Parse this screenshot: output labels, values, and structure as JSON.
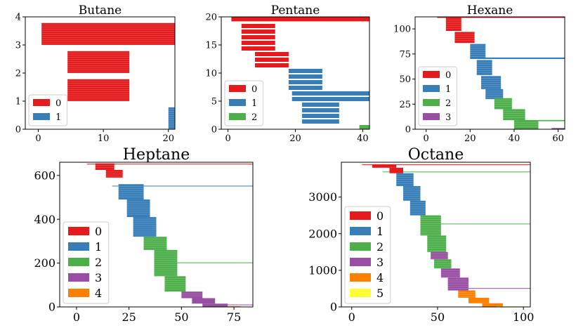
{
  "colors": {
    "0": "#e41a1c",
    "1": "#377eb8",
    "2": "#4daf4a",
    "3": "#984ea3",
    "4": "#ff7f00",
    "5": "#ffff33"
  },
  "chart_data": [
    {
      "type": "bar",
      "title": "Butane",
      "xlim": [
        -2,
        21
      ],
      "ylim": [
        0,
        4
      ],
      "xticks": [
        0,
        10,
        20
      ],
      "yticks": [
        0,
        1,
        2,
        3,
        4
      ],
      "legend": [
        "0",
        "1"
      ],
      "legend_position": "lower-left",
      "bars": [
        {
          "y": 3.0,
          "x0": 0.5,
          "x1": 21,
          "h": 0.78,
          "c": 0
        },
        {
          "y": 2.0,
          "x0": 4.5,
          "x1": 14,
          "h": 0.78,
          "c": 0
        },
        {
          "y": 1.0,
          "x0": 4.5,
          "x1": 14,
          "h": 0.78,
          "c": 0
        },
        {
          "y": 0.0,
          "x0": 20,
          "x1": 21,
          "h": 0.78,
          "c": 1
        }
      ]
    },
    {
      "type": "bar",
      "title": "Pentane",
      "xlim": [
        -2,
        42
      ],
      "ylim": [
        0,
        20
      ],
      "xticks": [
        0,
        20,
        40
      ],
      "yticks": [
        0,
        5,
        10,
        15,
        20
      ],
      "legend": [
        "0",
        "1",
        "2"
      ],
      "legend_position": "lower-left",
      "bars": [
        {
          "y": 19.2,
          "x0": 1,
          "x1": 42,
          "h": 0.75,
          "c": 0
        },
        {
          "y": 18.0,
          "x0": 4,
          "x1": 14,
          "h": 0.75,
          "c": 0
        },
        {
          "y": 17.0,
          "x0": 4,
          "x1": 14,
          "h": 0.75,
          "c": 0
        },
        {
          "y": 16.0,
          "x0": 4,
          "x1": 14,
          "h": 0.75,
          "c": 0
        },
        {
          "y": 15.0,
          "x0": 4,
          "x1": 14,
          "h": 0.75,
          "c": 0
        },
        {
          "y": 14.0,
          "x0": 4,
          "x1": 14,
          "h": 0.75,
          "c": 0
        },
        {
          "y": 13.0,
          "x0": 8,
          "x1": 18,
          "h": 0.75,
          "c": 0
        },
        {
          "y": 12.0,
          "x0": 8,
          "x1": 18,
          "h": 0.75,
          "c": 0
        },
        {
          "y": 11.0,
          "x0": 8,
          "x1": 18,
          "h": 0.75,
          "c": 0
        },
        {
          "y": 10.0,
          "x0": 18,
          "x1": 28,
          "h": 0.75,
          "c": 1
        },
        {
          "y": 9.0,
          "x0": 18,
          "x1": 28,
          "h": 0.75,
          "c": 1
        },
        {
          "y": 8.0,
          "x0": 18,
          "x1": 28,
          "h": 0.75,
          "c": 1
        },
        {
          "y": 7.0,
          "x0": 18,
          "x1": 28,
          "h": 0.75,
          "c": 1
        },
        {
          "y": 6.0,
          "x0": 19,
          "x1": 42,
          "h": 0.75,
          "c": 1
        },
        {
          "y": 5.0,
          "x0": 19,
          "x1": 42,
          "h": 0.75,
          "c": 1
        },
        {
          "y": 4.0,
          "x0": 22,
          "x1": 33,
          "h": 0.75,
          "c": 1
        },
        {
          "y": 3.0,
          "x0": 22,
          "x1": 33,
          "h": 0.75,
          "c": 1
        },
        {
          "y": 2.0,
          "x0": 22,
          "x1": 33,
          "h": 0.75,
          "c": 1
        },
        {
          "y": 1.0,
          "x0": 22,
          "x1": 33,
          "h": 0.75,
          "c": 1
        },
        {
          "y": 0.0,
          "x0": 39,
          "x1": 42,
          "h": 0.75,
          "c": 2
        }
      ]
    },
    {
      "type": "bar",
      "title": "Hexane",
      "xlim": [
        -5,
        63
      ],
      "ylim": [
        0,
        112
      ],
      "xticks": [
        0,
        20,
        40,
        60
      ],
      "yticks": [
        0,
        25,
        50,
        75,
        100
      ],
      "legend": [
        "0",
        "1",
        "2",
        "3"
      ],
      "legend_position": "lower-left",
      "bars": [
        {
          "y": 111,
          "x0": 5,
          "x1": 63,
          "h": 1.2,
          "c": 0
        },
        {
          "y": 98,
          "x0": 9,
          "x1": 16,
          "h": 13,
          "c": 0
        },
        {
          "y": 86,
          "x0": 13,
          "x1": 22,
          "h": 11,
          "c": 0
        },
        {
          "y": 70,
          "x0": 21,
          "x1": 63,
          "h": 1.5,
          "c": 1
        },
        {
          "y": 70,
          "x0": 20,
          "x1": 27,
          "h": 15,
          "c": 1
        },
        {
          "y": 54,
          "x0": 23,
          "x1": 30,
          "h": 15,
          "c": 1
        },
        {
          "y": 40,
          "x0": 25,
          "x1": 34,
          "h": 13,
          "c": 1
        },
        {
          "y": 30,
          "x0": 27,
          "x1": 35,
          "h": 10,
          "c": 1
        },
        {
          "y": 20,
          "x0": 31,
          "x1": 39,
          "h": 11,
          "c": 2
        },
        {
          "y": 9,
          "x0": 35,
          "x1": 45,
          "h": 11,
          "c": 2
        },
        {
          "y": 8,
          "x0": 42,
          "x1": 63,
          "h": 1.2,
          "c": 2
        },
        {
          "y": 0,
          "x0": 40,
          "x1": 51,
          "h": 9,
          "c": 2
        },
        {
          "y": 0,
          "x0": 57,
          "x1": 63,
          "h": 1.2,
          "c": 3
        }
      ]
    },
    {
      "type": "bar",
      "title": "Heptane",
      "xlim": [
        -8,
        84
      ],
      "ylim": [
        0,
        660
      ],
      "xticks": [
        0,
        25,
        50,
        75
      ],
      "yticks": [
        0,
        200,
        400,
        600
      ],
      "legend": [
        "0",
        "1",
        "2",
        "3",
        "4"
      ],
      "legend_position": "lower-left",
      "bars": [
        {
          "y": 650,
          "x0": 5,
          "x1": 84,
          "h": 3,
          "c": 0
        },
        {
          "y": 625,
          "x0": 9,
          "x1": 18,
          "h": 30,
          "c": 0
        },
        {
          "y": 590,
          "x0": 14,
          "x1": 22,
          "h": 35,
          "c": 0
        },
        {
          "y": 550,
          "x0": 17,
          "x1": 84,
          "h": 3,
          "c": 1
        },
        {
          "y": 490,
          "x0": 20,
          "x1": 32,
          "h": 70,
          "c": 1
        },
        {
          "y": 410,
          "x0": 24,
          "x1": 35,
          "h": 80,
          "c": 1
        },
        {
          "y": 320,
          "x0": 27,
          "x1": 38,
          "h": 90,
          "c": 1
        },
        {
          "y": 260,
          "x0": 32,
          "x1": 43,
          "h": 60,
          "c": 2
        },
        {
          "y": 200,
          "x0": 38,
          "x1": 84,
          "h": 3,
          "c": 2
        },
        {
          "y": 140,
          "x0": 37,
          "x1": 48,
          "h": 120,
          "c": 2
        },
        {
          "y": 70,
          "x0": 42,
          "x1": 52,
          "h": 70,
          "c": 2
        },
        {
          "y": 40,
          "x0": 50,
          "x1": 60,
          "h": 30,
          "c": 3
        },
        {
          "y": 15,
          "x0": 55,
          "x1": 66,
          "h": 25,
          "c": 3
        },
        {
          "y": 8,
          "x0": 65,
          "x1": 84,
          "h": 3,
          "c": 3
        },
        {
          "y": 0,
          "x0": 60,
          "x1": 72,
          "h": 15,
          "c": 3
        },
        {
          "y": 0,
          "x0": 72,
          "x1": 78,
          "h": 3,
          "c": 4
        }
      ]
    },
    {
      "type": "bar",
      "title": "Octane",
      "xlim": [
        -6,
        104
      ],
      "ylim": [
        0,
        3950
      ],
      "xticks": [
        0,
        50,
        100
      ],
      "yticks": [
        0,
        1000,
        2000,
        3000
      ],
      "legend": [
        "0",
        "1",
        "2",
        "3",
        "4",
        "5"
      ],
      "legend_position": "lower-left",
      "bars": [
        {
          "y": 3880,
          "x0": 6,
          "x1": 104,
          "h": 15,
          "c": 0
        },
        {
          "y": 3800,
          "x0": 12,
          "x1": 26,
          "h": 90,
          "c": 0
        },
        {
          "y": 3680,
          "x0": 18,
          "x1": 104,
          "h": 15,
          "c": 2
        },
        {
          "y": 3650,
          "x0": 22,
          "x1": 30,
          "h": 150,
          "c": 0
        },
        {
          "y": 3300,
          "x0": 26,
          "x1": 36,
          "h": 350,
          "c": 1
        },
        {
          "y": 2900,
          "x0": 30,
          "x1": 40,
          "h": 400,
          "c": 1
        },
        {
          "y": 2500,
          "x0": 34,
          "x1": 43,
          "h": 400,
          "c": 1
        },
        {
          "y": 2260,
          "x0": 40,
          "x1": 104,
          "h": 15,
          "c": 2
        },
        {
          "y": 1950,
          "x0": 40,
          "x1": 52,
          "h": 550,
          "c": 2
        },
        {
          "y": 1500,
          "x0": 44,
          "x1": 55,
          "h": 450,
          "c": 2
        },
        {
          "y": 1300,
          "x0": 46,
          "x1": 56,
          "h": 200,
          "c": 3
        },
        {
          "y": 1050,
          "x0": 48,
          "x1": 58,
          "h": 250,
          "c": 2
        },
        {
          "y": 800,
          "x0": 52,
          "x1": 63,
          "h": 250,
          "c": 3
        },
        {
          "y": 500,
          "x0": 56,
          "x1": 104,
          "h": 15,
          "c": 3
        },
        {
          "y": 450,
          "x0": 56,
          "x1": 68,
          "h": 350,
          "c": 3
        },
        {
          "y": 250,
          "x0": 62,
          "x1": 72,
          "h": 200,
          "c": 4
        },
        {
          "y": 100,
          "x0": 68,
          "x1": 80,
          "h": 150,
          "c": 4
        },
        {
          "y": 0,
          "x0": 76,
          "x1": 88,
          "h": 100,
          "c": 4
        },
        {
          "y": 0,
          "x0": 84,
          "x1": 100,
          "h": 15,
          "c": 5
        }
      ]
    }
  ]
}
